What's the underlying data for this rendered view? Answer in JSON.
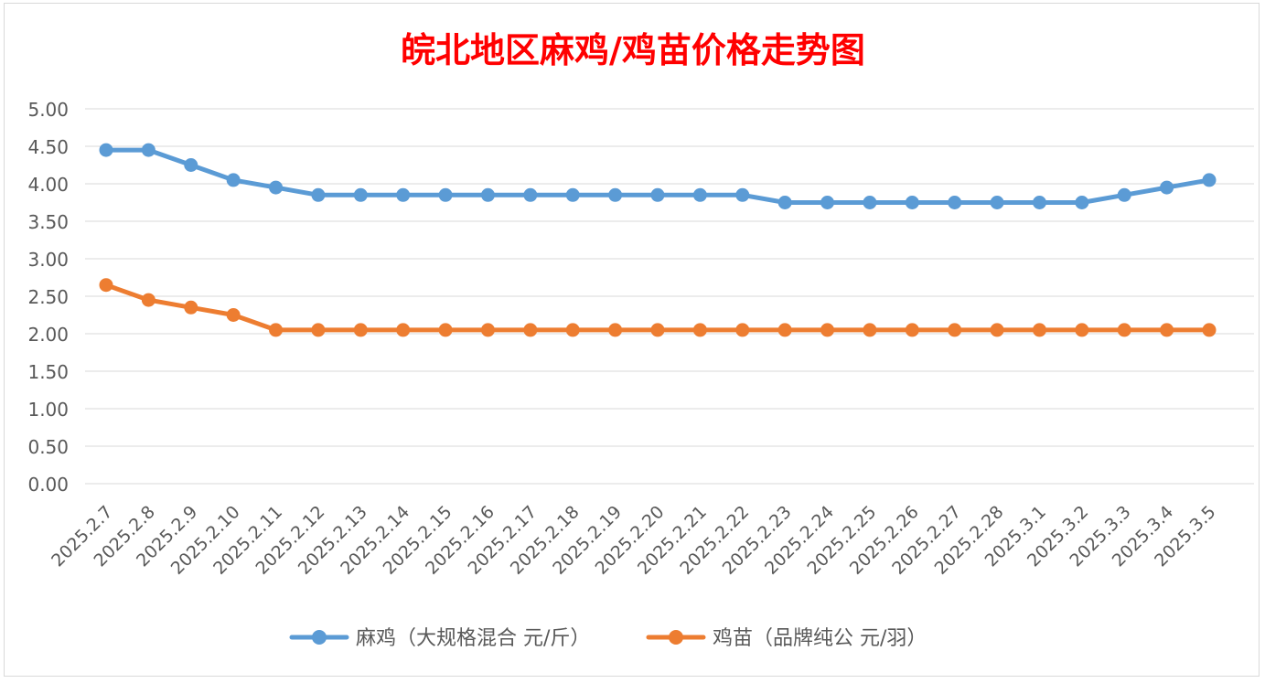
{
  "chart_data": {
    "type": "line",
    "title": "皖北地区麻鸡/鸡苗价格走势图",
    "xlabel": "",
    "ylabel": "",
    "ylim": [
      0,
      5
    ],
    "y_ticks": [
      "0.00",
      "0.50",
      "1.00",
      "1.50",
      "2.00",
      "2.50",
      "3.00",
      "3.50",
      "4.00",
      "4.50",
      "5.00"
    ],
    "y_tick_values": [
      0,
      0.5,
      1,
      1.5,
      2,
      2.5,
      3,
      3.5,
      4,
      4.5,
      5
    ],
    "grid": true,
    "legend_position": "bottom",
    "categories": [
      "2025.2.7",
      "2025.2.8",
      "2025.2.9",
      "2025.2.10",
      "2025.2.11",
      "2025.2.12",
      "2025.2.13",
      "2025.2.14",
      "2025.2.15",
      "2025.2.16",
      "2025.2.17",
      "2025.2.18",
      "2025.2.19",
      "2025.2.20",
      "2025.2.21",
      "2025.2.22",
      "2025.2.23",
      "2025.2.24",
      "2025.2.25",
      "2025.2.26",
      "2025.2.27",
      "2025.2.28",
      "2025.3.1",
      "2025.3.2",
      "2025.3.3",
      "2025.3.4",
      "2025.3.5"
    ],
    "series": [
      {
        "name": "麻鸡（大规格混合 元/斤）",
        "color": "#5b9bd5",
        "values": [
          4.45,
          4.45,
          4.25,
          4.05,
          3.95,
          3.85,
          3.85,
          3.85,
          3.85,
          3.85,
          3.85,
          3.85,
          3.85,
          3.85,
          3.85,
          3.85,
          3.75,
          3.75,
          3.75,
          3.75,
          3.75,
          3.75,
          3.75,
          3.75,
          3.85,
          3.95,
          4.05
        ]
      },
      {
        "name": "鸡苗（品牌纯公 元/羽）",
        "color": "#ed7d31",
        "values": [
          2.65,
          2.45,
          2.35,
          2.25,
          2.05,
          2.05,
          2.05,
          2.05,
          2.05,
          2.05,
          2.05,
          2.05,
          2.05,
          2.05,
          2.05,
          2.05,
          2.05,
          2.05,
          2.05,
          2.05,
          2.05,
          2.05,
          2.05,
          2.05,
          2.05,
          2.05,
          2.05
        ]
      }
    ]
  },
  "colors": {
    "title": "#ff0000",
    "gridline": "#d9d9d9",
    "tick_text": "#595959"
  }
}
